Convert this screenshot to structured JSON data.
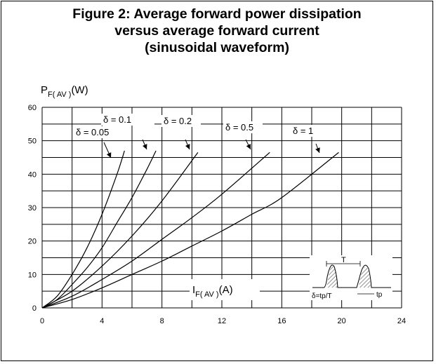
{
  "title_lines": [
    "Figure 2: Average forward power dissipation",
    "versus average forward current",
    "(sinusoidal waveform)"
  ],
  "chart_data": {
    "type": "line",
    "title": "Figure 2: Average forward power dissipation versus average forward current (sinusoidal waveform)",
    "ylabel": {
      "main": "P",
      "sub": "F( AV )",
      "unit": "(W)"
    },
    "xlabel": {
      "main": "I",
      "sub": "F( AV )",
      "unit": "(A)"
    },
    "xlim": [
      0,
      24
    ],
    "ylim": [
      0,
      60
    ],
    "xticks": [
      0,
      4,
      8,
      12,
      16,
      20,
      24
    ],
    "yticks": [
      0,
      10,
      20,
      30,
      40,
      50,
      60
    ],
    "grid": true,
    "x_minor_step": 2,
    "y_minor_step": 5,
    "series": [
      {
        "name": "δ = 0.05",
        "x": [
          0,
          1,
          2,
          3,
          4,
          5,
          5.5
        ],
        "y": [
          0,
          3.5,
          10,
          18,
          28,
          40,
          47
        ]
      },
      {
        "name": "δ = 0.1",
        "x": [
          0,
          1,
          2,
          3,
          4,
          5,
          6,
          7,
          7.6
        ],
        "y": [
          0,
          2.5,
          7,
          12,
          18,
          25.5,
          33,
          41.5,
          47
        ]
      },
      {
        "name": "δ = 0.2",
        "x": [
          0,
          2,
          4,
          6,
          8,
          10.4
        ],
        "y": [
          0,
          5,
          12.5,
          21.5,
          32,
          46.5
        ]
      },
      {
        "name": "δ = 0.5",
        "x": [
          0,
          2,
          4,
          6,
          8,
          10,
          12,
          15.2
        ],
        "y": [
          0,
          3.5,
          8.5,
          14,
          20.5,
          27,
          34,
          46.5
        ]
      },
      {
        "name": "δ = 1",
        "x": [
          0,
          2,
          4,
          6,
          8,
          10,
          12,
          14,
          16,
          19.8
        ],
        "y": [
          0,
          2.5,
          6,
          10,
          14,
          18.5,
          23,
          28,
          33,
          46.5
        ]
      }
    ],
    "inset": {
      "period_label": "T",
      "duty_label": "δ=tp/T",
      "pulse_label": "tp"
    }
  }
}
